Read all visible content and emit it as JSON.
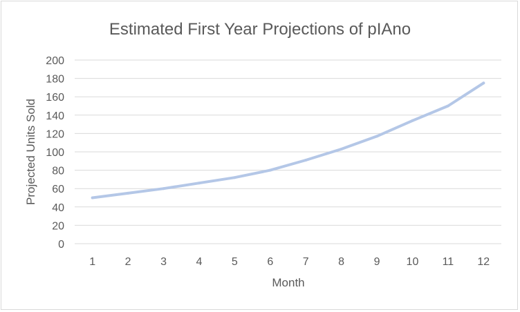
{
  "chart_data": {
    "type": "line",
    "title": "Estimated First Year Projections of pIAno",
    "xlabel": "Month",
    "ylabel": "Projected Units Sold",
    "categories": [
      "1",
      "2",
      "3",
      "4",
      "5",
      "6",
      "7",
      "8",
      "9",
      "10",
      "11",
      "12"
    ],
    "series": [
      {
        "name": "Projected Units Sold",
        "values": [
          50,
          55,
          60,
          66,
          72,
          80,
          91,
          103,
          117,
          134,
          150,
          175
        ],
        "color": "#b4c7e7"
      }
    ],
    "ylim": [
      0,
      200
    ],
    "yticks": [
      "0",
      "20",
      "40",
      "60",
      "80",
      "100",
      "120",
      "140",
      "160",
      "180",
      "200"
    ],
    "grid": true,
    "legend": "none"
  }
}
